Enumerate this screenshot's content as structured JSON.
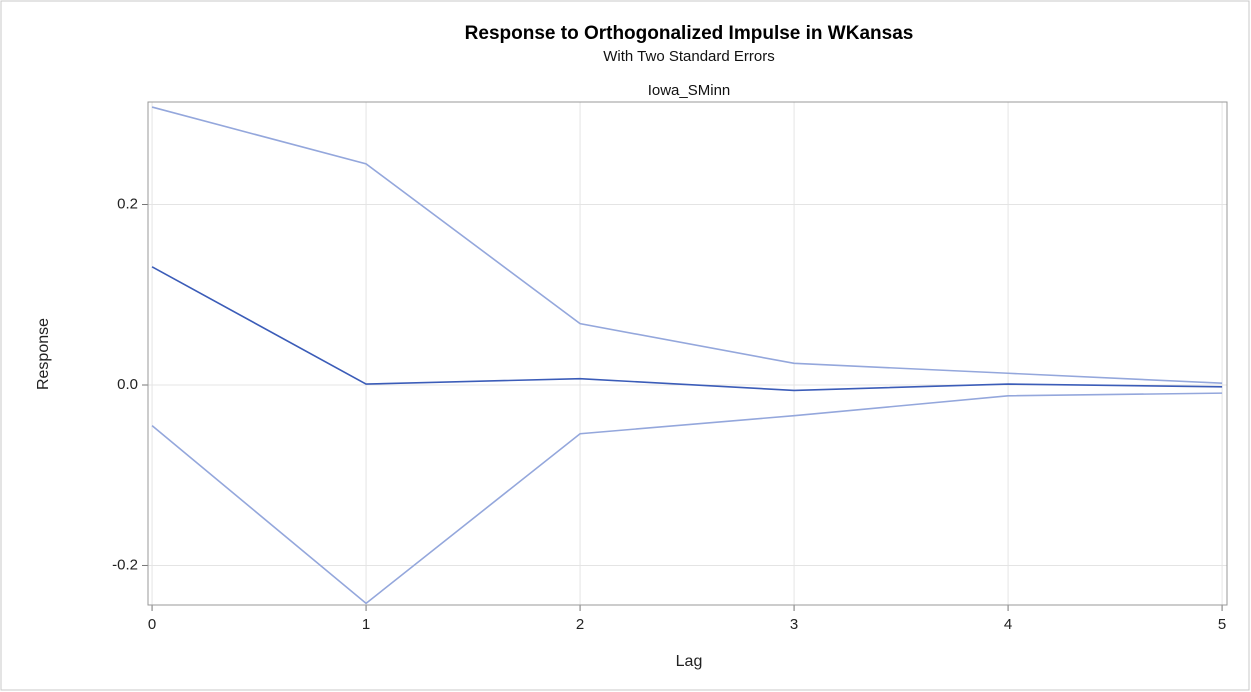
{
  "chart_data": {
    "type": "line",
    "title": "Response to Orthogonalized Impulse in WKansas",
    "subtitle": "With Two Standard Errors",
    "panel_label": "Iowa_SMinn",
    "x_label": "Lag",
    "y_label": "Response",
    "x": [
      0,
      1,
      2,
      3,
      4,
      5
    ],
    "series": [
      {
        "color": "#94a7dc",
        "values": [
          0.308,
          0.245,
          0.068,
          0.024,
          0.013,
          0.002
        ]
      },
      {
        "color": "#3b5cb8",
        "values": [
          0.131,
          0.001,
          0.007,
          -0.006,
          0.001,
          -0.002
        ]
      },
      {
        "color": "#94a7dc",
        "values": [
          -0.045,
          -0.242,
          -0.054,
          -0.034,
          -0.012,
          -0.009
        ]
      }
    ],
    "xlim": [
      -0.019,
      5.023
    ],
    "ylim": [
      -0.2438,
      0.3136
    ],
    "xticks": [
      0,
      1,
      2,
      3,
      4,
      5
    ],
    "yticks": [
      {
        "value": -0.2,
        "label": "-0.2"
      },
      {
        "value": 0,
        "label": "0.0"
      },
      0.2
    ],
    "grid": true
  }
}
